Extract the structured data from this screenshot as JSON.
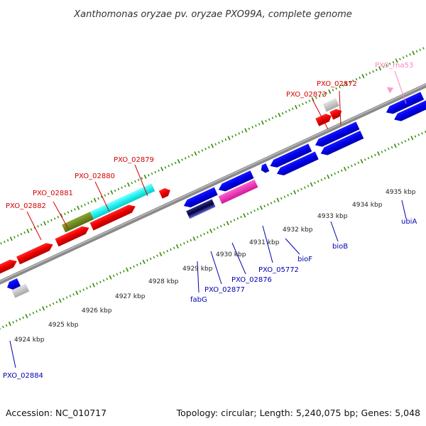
{
  "title": "Xanthomonas oryzae pv. oryzae PXO99A, complete genome",
  "footer": {
    "accession": "Accession: NC_010717",
    "summary": "Topology: circular; Length: 5,240,075 bp; Genes: 5,048"
  },
  "colors": {
    "forward_label": "#d40000",
    "reverse_label": "#0000b0",
    "rna_label": "#ff80c0",
    "tick": "#2e8b00",
    "backbone": "#7a7a7a"
  },
  "ticks": [
    "4924 kbp",
    "4925 kbp",
    "4926 kbp",
    "4927 kbp",
    "4928 kbp",
    "4929 kbp",
    "4930 kbp",
    "4931 kbp",
    "4932 kbp",
    "4933 kbp",
    "4934 kbp",
    "4935 kbp"
  ],
  "forward_labels": [
    "PXO_02882",
    "PXO_02881",
    "PXO_02880",
    "PXO_02879",
    "PXO_02873",
    "PXO_02872"
  ],
  "reverse_labels": [
    "PXO_02884",
    "fabG",
    "PXO_02877",
    "PXO_02876",
    "PXO_05772",
    "bioF",
    "bioB",
    "ubiA"
  ],
  "rna_labels": [
    "PXO_rna53"
  ]
}
